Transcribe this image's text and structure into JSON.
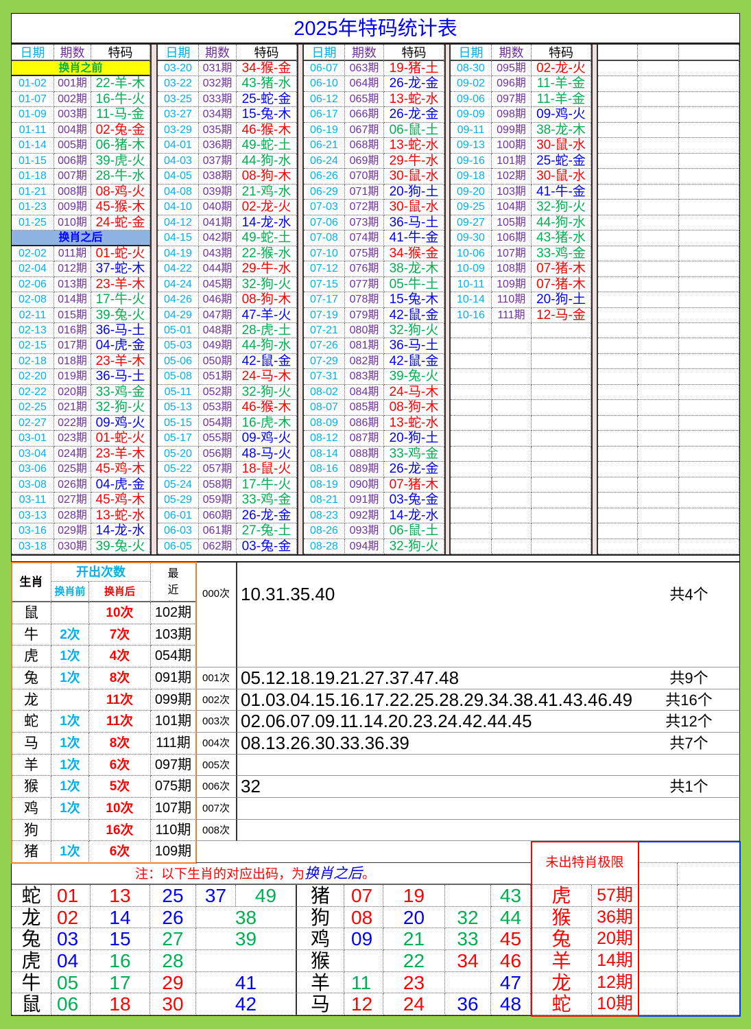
{
  "title": "2025年特码统计表",
  "headers": {
    "date": "日期",
    "period": "期数",
    "code": "特码"
  },
  "colors": {
    "red": "#ff0000",
    "blue": "#0000ff",
    "green": "#00b050",
    "date": "#00b0f0",
    "period": "#7030a0",
    "before_bg": "#ffff00",
    "after_bg": "#8db4e2",
    "orange": "#ed7d31"
  },
  "draws": [
    [
      {
        "label": "换肖之前",
        "kind": "before"
      },
      {
        "date": "01-02",
        "period": "001期",
        "code": "22-羊-木"
      },
      {
        "date": "01-07",
        "period": "002期",
        "code": "16-牛-火"
      },
      {
        "date": "01-09",
        "period": "003期",
        "code": "11-马-金"
      },
      {
        "date": "01-11",
        "period": "004期",
        "code": "02-兔-金"
      },
      {
        "date": "01-14",
        "period": "005期",
        "code": "06-猪-木"
      },
      {
        "date": "01-15",
        "period": "006期",
        "code": "39-虎-火"
      },
      {
        "date": "01-18",
        "period": "007期",
        "code": "28-牛-水"
      },
      {
        "date": "01-21",
        "period": "008期",
        "code": "08-鸡-火"
      },
      {
        "date": "01-23",
        "period": "009期",
        "code": "45-猴-木"
      },
      {
        "date": "01-25",
        "period": "010期",
        "code": "24-蛇-金"
      },
      {
        "label": "换肖之后",
        "kind": "after"
      },
      {
        "date": "02-02",
        "period": "011期",
        "code": "01-蛇-火"
      },
      {
        "date": "02-04",
        "period": "012期",
        "code": "37-蛇-木"
      },
      {
        "date": "02-06",
        "period": "013期",
        "code": "23-羊-木"
      },
      {
        "date": "02-08",
        "period": "014期",
        "code": "17-牛-火"
      },
      {
        "date": "02-11",
        "period": "015期",
        "code": "39-兔-火"
      },
      {
        "date": "02-13",
        "period": "016期",
        "code": "36-马-土"
      },
      {
        "date": "02-15",
        "period": "017期",
        "code": "04-虎-金"
      },
      {
        "date": "02-18",
        "period": "018期",
        "code": "23-羊-木"
      },
      {
        "date": "02-20",
        "period": "019期",
        "code": "36-马-土"
      },
      {
        "date": "02-22",
        "period": "020期",
        "code": "33-鸡-金"
      },
      {
        "date": "02-25",
        "period": "021期",
        "code": "32-狗-火"
      },
      {
        "date": "02-27",
        "period": "022期",
        "code": "09-鸡-火"
      },
      {
        "date": "03-01",
        "period": "023期",
        "code": "01-蛇-火"
      },
      {
        "date": "03-04",
        "period": "024期",
        "code": "23-羊-木"
      },
      {
        "date": "03-06",
        "period": "025期",
        "code": "45-鸡-木"
      },
      {
        "date": "03-08",
        "period": "026期",
        "code": "04-虎-金"
      },
      {
        "date": "03-11",
        "period": "027期",
        "code": "45-鸡-木"
      },
      {
        "date": "03-13",
        "period": "028期",
        "code": "13-蛇-水"
      },
      {
        "date": "03-16",
        "period": "029期",
        "code": "14-龙-水"
      },
      {
        "date": "03-18",
        "period": "030期",
        "code": "39-兔-火"
      }
    ],
    [
      {
        "date": "03-20",
        "period": "031期",
        "code": "34-猴-金"
      },
      {
        "date": "03-22",
        "period": "032期",
        "code": "43-猪-水"
      },
      {
        "date": "03-25",
        "period": "033期",
        "code": "25-蛇-金"
      },
      {
        "date": "03-27",
        "period": "034期",
        "code": "15-兔-木"
      },
      {
        "date": "03-29",
        "period": "035期",
        "code": "46-猴-木"
      },
      {
        "date": "04-01",
        "period": "036期",
        "code": "49-蛇-土"
      },
      {
        "date": "04-03",
        "period": "037期",
        "code": "44-狗-水"
      },
      {
        "date": "04-05",
        "period": "038期",
        "code": "08-狗-木"
      },
      {
        "date": "04-08",
        "period": "039期",
        "code": "21-鸡-水"
      },
      {
        "date": "04-10",
        "period": "040期",
        "code": "02-龙-火"
      },
      {
        "date": "04-12",
        "period": "041期",
        "code": "14-龙-水"
      },
      {
        "date": "04-15",
        "period": "042期",
        "code": "49-蛇-土"
      },
      {
        "date": "04-19",
        "period": "043期",
        "code": "22-猴-水"
      },
      {
        "date": "04-22",
        "period": "044期",
        "code": "29-牛-水"
      },
      {
        "date": "04-24",
        "period": "045期",
        "code": "32-狗-火"
      },
      {
        "date": "04-26",
        "period": "046期",
        "code": "08-狗-木"
      },
      {
        "date": "04-29",
        "period": "047期",
        "code": "47-羊-火"
      },
      {
        "date": "05-01",
        "period": "048期",
        "code": "28-虎-土"
      },
      {
        "date": "05-03",
        "period": "049期",
        "code": "44-狗-水"
      },
      {
        "date": "05-06",
        "period": "050期",
        "code": "42-鼠-金"
      },
      {
        "date": "05-08",
        "period": "051期",
        "code": "24-马-木"
      },
      {
        "date": "05-11",
        "period": "052期",
        "code": "32-狗-火"
      },
      {
        "date": "05-13",
        "period": "053期",
        "code": "46-猴-木"
      },
      {
        "date": "05-15",
        "period": "054期",
        "code": "16-虎-木"
      },
      {
        "date": "05-17",
        "period": "055期",
        "code": "09-鸡-火"
      },
      {
        "date": "05-20",
        "period": "056期",
        "code": "48-马-火"
      },
      {
        "date": "05-22",
        "period": "057期",
        "code": "18-鼠-火"
      },
      {
        "date": "05-24",
        "period": "058期",
        "code": "17-牛-火"
      },
      {
        "date": "05-29",
        "period": "059期",
        "code": "33-鸡-金"
      },
      {
        "date": "06-01",
        "period": "060期",
        "code": "26-龙-金"
      },
      {
        "date": "06-03",
        "period": "061期",
        "code": "27-兔-土"
      },
      {
        "date": "06-05",
        "period": "062期",
        "code": "03-兔-金"
      }
    ],
    [
      {
        "date": "06-07",
        "period": "063期",
        "code": "19-猪-土"
      },
      {
        "date": "06-10",
        "period": "064期",
        "code": "26-龙-金"
      },
      {
        "date": "06-12",
        "period": "065期",
        "code": "13-蛇-水"
      },
      {
        "date": "06-17",
        "period": "066期",
        "code": "26-龙-金"
      },
      {
        "date": "06-19",
        "period": "067期",
        "code": "06-鼠-土"
      },
      {
        "date": "06-21",
        "period": "068期",
        "code": "13-蛇-水"
      },
      {
        "date": "06-24",
        "period": "069期",
        "code": "29-牛-水"
      },
      {
        "date": "06-26",
        "period": "070期",
        "code": "30-鼠-水"
      },
      {
        "date": "06-29",
        "period": "071期",
        "code": "20-狗-土"
      },
      {
        "date": "07-03",
        "period": "072期",
        "code": "30-鼠-水"
      },
      {
        "date": "07-06",
        "period": "073期",
        "code": "36-马-土"
      },
      {
        "date": "07-08",
        "period": "074期",
        "code": "41-牛-金"
      },
      {
        "date": "07-10",
        "period": "075期",
        "code": "34-猴-金"
      },
      {
        "date": "07-12",
        "period": "076期",
        "code": "38-龙-木"
      },
      {
        "date": "07-15",
        "period": "077期",
        "code": "05-牛-土"
      },
      {
        "date": "07-17",
        "period": "078期",
        "code": "15-兔-木"
      },
      {
        "date": "07-19",
        "period": "079期",
        "code": "42-鼠-金"
      },
      {
        "date": "07-21",
        "period": "080期",
        "code": "32-狗-火"
      },
      {
        "date": "07-26",
        "period": "081期",
        "code": "36-马-土"
      },
      {
        "date": "07-29",
        "period": "082期",
        "code": "42-鼠-金"
      },
      {
        "date": "07-31",
        "period": "083期",
        "code": "39-兔-火"
      },
      {
        "date": "08-02",
        "period": "084期",
        "code": "24-马-木"
      },
      {
        "date": "08-07",
        "period": "085期",
        "code": "08-狗-木"
      },
      {
        "date": "08-09",
        "period": "086期",
        "code": "13-蛇-水"
      },
      {
        "date": "08-12",
        "period": "087期",
        "code": "20-狗-土"
      },
      {
        "date": "08-14",
        "period": "088期",
        "code": "33-鸡-金"
      },
      {
        "date": "08-16",
        "period": "089期",
        "code": "26-龙-金"
      },
      {
        "date": "08-19",
        "period": "090期",
        "code": "07-猪-木"
      },
      {
        "date": "08-21",
        "period": "091期",
        "code": "03-兔-金"
      },
      {
        "date": "08-23",
        "period": "092期",
        "code": "14-龙-水"
      },
      {
        "date": "08-26",
        "period": "093期",
        "code": "06-鼠-土"
      },
      {
        "date": "08-28",
        "period": "094期",
        "code": "32-狗-火"
      }
    ],
    [
      {
        "date": "08-30",
        "period": "095期",
        "code": "02-龙-火"
      },
      {
        "date": "09-02",
        "period": "096期",
        "code": "11-羊-金"
      },
      {
        "date": "09-06",
        "period": "097期",
        "code": "11-羊-金"
      },
      {
        "date": "09-09",
        "period": "098期",
        "code": "09-鸡-火"
      },
      {
        "date": "09-11",
        "period": "099期",
        "code": "38-龙-木"
      },
      {
        "date": "09-13",
        "period": "100期",
        "code": "30-鼠-水"
      },
      {
        "date": "09-16",
        "period": "101期",
        "code": "25-蛇-金"
      },
      {
        "date": "09-18",
        "period": "102期",
        "code": "30-鼠-水"
      },
      {
        "date": "09-20",
        "period": "103期",
        "code": "41-牛-金"
      },
      {
        "date": "09-25",
        "period": "104期",
        "code": "32-狗-火"
      },
      {
        "date": "09-27",
        "period": "105期",
        "code": "44-狗-水"
      },
      {
        "date": "09-30",
        "period": "106期",
        "code": "43-猪-水"
      },
      {
        "date": "10-06",
        "period": "107期",
        "code": "33-鸡-金"
      },
      {
        "date": "10-09",
        "period": "108期",
        "code": "07-猪-木"
      },
      {
        "date": "10-11",
        "period": "109期",
        "code": "07-猪-木"
      },
      {
        "date": "10-14",
        "period": "110期",
        "code": "20-狗-土"
      },
      {
        "date": "10-16",
        "period": "111期",
        "code": "12-马-金"
      }
    ]
  ],
  "stats": {
    "headers": {
      "zodiac": "生肖",
      "count": "开出次数",
      "before": "换肖前",
      "after": "换肖后",
      "recent": "最近期数"
    },
    "rows": [
      {
        "zodiac": "鼠",
        "before": "",
        "after": "10次",
        "recent": "102期"
      },
      {
        "zodiac": "牛",
        "before": "2次",
        "after": "7次",
        "recent": "103期"
      },
      {
        "zodiac": "虎",
        "before": "1次",
        "after": "4次",
        "recent": "054期"
      },
      {
        "zodiac": "兔",
        "before": "1次",
        "after": "8次",
        "recent": "091期"
      },
      {
        "zodiac": "龙",
        "before": "",
        "after": "11次",
        "recent": "099期"
      },
      {
        "zodiac": "蛇",
        "before": "1次",
        "after": "11次",
        "recent": "101期"
      },
      {
        "zodiac": "马",
        "before": "1次",
        "after": "8次",
        "recent": "111期"
      },
      {
        "zodiac": "羊",
        "before": "1次",
        "after": "6次",
        "recent": "097期"
      },
      {
        "zodiac": "猴",
        "before": "1次",
        "after": "5次",
        "recent": "075期"
      },
      {
        "zodiac": "鸡",
        "before": "1次",
        "after": "10次",
        "recent": "107期"
      },
      {
        "zodiac": "狗",
        "before": "",
        "after": "16次",
        "recent": "110期"
      },
      {
        "zodiac": "猪",
        "before": "1次",
        "after": "6次",
        "recent": "109期"
      }
    ]
  },
  "frequency": [
    {
      "label": "000次",
      "numbers": "10.31.35.40",
      "total": "共4个"
    },
    {
      "label": "001次",
      "numbers": "05.12.18.19.21.27.37.47.48",
      "total": "共9个"
    },
    {
      "label": "002次",
      "numbers": "01.03.04.15.16.17.22.25.28.29.34.38.41.43.46.49",
      "total": "共16个"
    },
    {
      "label": "003次",
      "numbers": "02.06.07.09.11.14.20.23.24.42.44.45",
      "total": "共12个"
    },
    {
      "label": "004次",
      "numbers": "08.13.26.30.33.36.39",
      "total": "共7个"
    },
    {
      "label": "005次",
      "numbers": "",
      "total": ""
    },
    {
      "label": "006次",
      "numbers": "32",
      "total": "共1个"
    },
    {
      "label": "007次",
      "numbers": "",
      "total": ""
    },
    {
      "label": "008次",
      "numbers": "",
      "total": ""
    }
  ],
  "note": {
    "prefix": "注：以下生肖的对应出码，为",
    "emphasis": "换肖之后",
    "suffix": "。"
  },
  "zodiac_numbers": {
    "left": [
      {
        "zodiac": "蛇",
        "numbers": [
          "01",
          "13",
          "25",
          "37",
          "49"
        ]
      },
      {
        "zodiac": "龙",
        "numbers": [
          "02",
          "14",
          "26",
          "38"
        ]
      },
      {
        "zodiac": "兔",
        "numbers": [
          "03",
          "15",
          "27",
          "39"
        ]
      },
      {
        "zodiac": "虎",
        "numbers": [
          "04",
          "16",
          "28",
          ""
        ]
      },
      {
        "zodiac": "牛",
        "numbers": [
          "05",
          "17",
          "29",
          "41"
        ]
      },
      {
        "zodiac": "鼠",
        "numbers": [
          "06",
          "18",
          "30",
          "42"
        ]
      }
    ],
    "right": [
      {
        "zodiac": "猪",
        "numbers": [
          "07",
          "19",
          "",
          "43"
        ]
      },
      {
        "zodiac": "狗",
        "numbers": [
          "08",
          "20",
          "32",
          "44"
        ]
      },
      {
        "zodiac": "鸡",
        "numbers": [
          "09",
          "21",
          "33",
          "45"
        ]
      },
      {
        "zodiac": "猴",
        "numbers": [
          "",
          "22",
          "34",
          "46"
        ]
      },
      {
        "zodiac": "羊",
        "numbers": [
          "11",
          "23",
          "",
          "47"
        ]
      },
      {
        "zodiac": "马",
        "numbers": [
          "12",
          "24",
          "36",
          "48"
        ]
      }
    ]
  },
  "absence_limit": {
    "title": "未出特肖极限",
    "rows": [
      {
        "zodiac": "虎",
        "periods": "57期"
      },
      {
        "zodiac": "猴",
        "periods": "36期"
      },
      {
        "zodiac": "兔",
        "periods": "20期"
      },
      {
        "zodiac": "羊",
        "periods": "14期"
      },
      {
        "zodiac": "龙",
        "periods": "12期"
      },
      {
        "zodiac": "蛇",
        "periods": "10期"
      }
    ]
  }
}
